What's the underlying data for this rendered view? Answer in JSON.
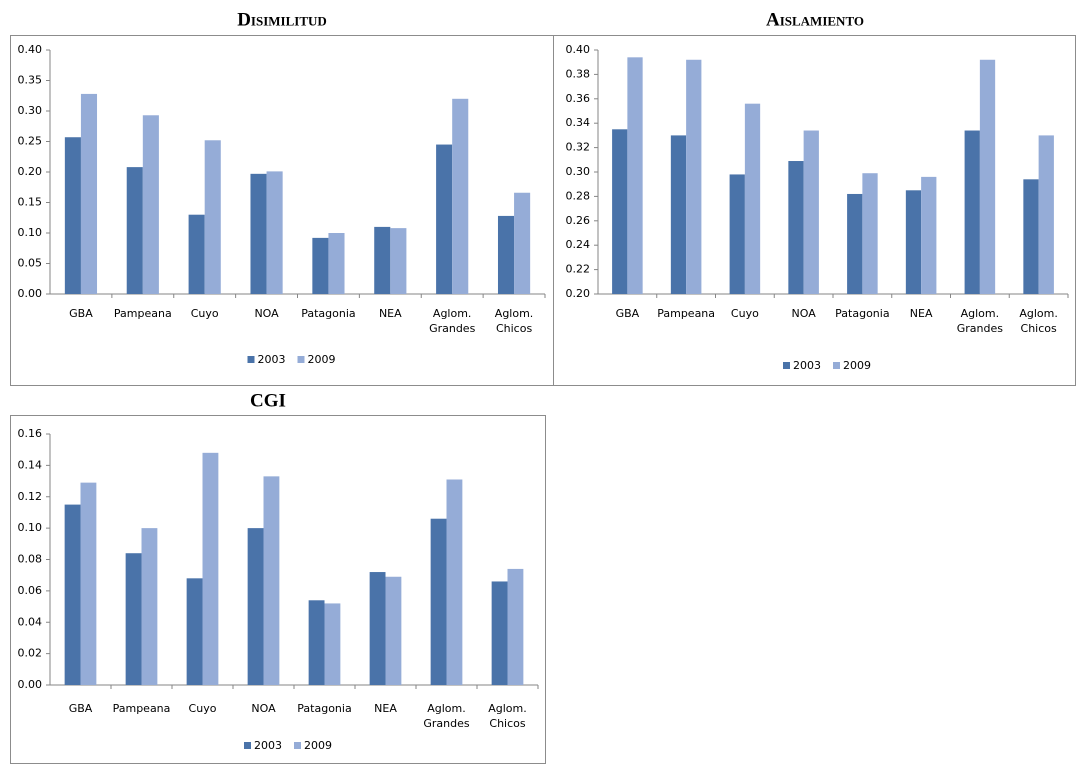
{
  "chart_data": [
    {
      "type": "bar",
      "title": "Disimilitud",
      "categories": [
        "GBA",
        "Pampeana",
        "Cuyo",
        "NOA",
        "Patagonia",
        "NEA",
        "Aglom. Grandes",
        "Aglom. Chicos"
      ],
      "series": [
        {
          "name": "2003",
          "color": "#4a73a9",
          "values": [
            0.257,
            0.208,
            0.13,
            0.197,
            0.092,
            0.11,
            0.245,
            0.128
          ]
        },
        {
          "name": "2009",
          "color": "#95acd7",
          "values": [
            0.328,
            0.293,
            0.252,
            0.201,
            0.1,
            0.108,
            0.32,
            0.166
          ]
        }
      ],
      "ylim": [
        0,
        0.4
      ],
      "yticks": [
        {
          "value": 0,
          "label": "0.00"
        },
        {
          "value": 0.05,
          "label": "0.05"
        },
        {
          "value": 0.1,
          "label": "0.10"
        },
        {
          "value": 0.15,
          "label": "0.15"
        },
        {
          "value": 0.2,
          "label": "0.20"
        },
        {
          "value": 0.25,
          "label": "0.25"
        },
        {
          "value": 0.3,
          "label": "0.30"
        },
        {
          "value": 0.35,
          "label": "0.35"
        },
        {
          "value": 0.4,
          "label": "0.40"
        }
      ],
      "legend": "bottom"
    },
    {
      "type": "bar",
      "title": "Aislamiento",
      "categories": [
        "GBA",
        "Pampeana",
        "Cuyo",
        "NOA",
        "Patagonia",
        "NEA",
        "Aglom. Grandes",
        "Aglom. Chicos"
      ],
      "series": [
        {
          "name": "2003",
          "color": "#4a73a9",
          "values": [
            0.335,
            0.33,
            0.298,
            0.309,
            0.282,
            0.285,
            0.334,
            0.294
          ]
        },
        {
          "name": "2009",
          "color": "#95acd7",
          "values": [
            0.394,
            0.392,
            0.356,
            0.334,
            0.299,
            0.296,
            0.392,
            0.33
          ]
        }
      ],
      "ylim": [
        0.2,
        0.4
      ],
      "yticks": [
        {
          "value": 0.2,
          "label": "0.20"
        },
        {
          "value": 0.22,
          "label": "0.22"
        },
        {
          "value": 0.24,
          "label": "0.24"
        },
        {
          "value": 0.26,
          "label": "0.26"
        },
        {
          "value": 0.28,
          "label": "0.28"
        },
        {
          "value": 0.3,
          "label": "0.30"
        },
        {
          "value": 0.32,
          "label": "0.32"
        },
        {
          "value": 0.34,
          "label": "0.34"
        },
        {
          "value": 0.36,
          "label": "0.36"
        },
        {
          "value": 0.38,
          "label": "0.38"
        },
        {
          "value": 0.4,
          "label": "0.40"
        }
      ],
      "legend": "bottom"
    },
    {
      "type": "bar",
      "title": "CGI",
      "categories": [
        "GBA",
        "Pampeana",
        "Cuyo",
        "NOA",
        "Patagonia",
        "NEA",
        "Aglom. Grandes",
        "Aglom. Chicos"
      ],
      "series": [
        {
          "name": "2003",
          "color": "#4a73a9",
          "values": [
            0.115,
            0.084,
            0.068,
            0.1,
            0.054,
            0.072,
            0.106,
            0.066
          ]
        },
        {
          "name": "2009",
          "color": "#95acd7",
          "values": [
            0.129,
            0.1,
            0.148,
            0.133,
            0.052,
            0.069,
            0.131,
            0.074
          ]
        }
      ],
      "ylim": [
        0,
        0.16
      ],
      "yticks": [
        {
          "value": 0,
          "label": "0.00"
        },
        {
          "value": 0.02,
          "label": "0.02"
        },
        {
          "value": 0.04,
          "label": "0.04"
        },
        {
          "value": 0.06,
          "label": "0.06"
        },
        {
          "value": 0.08,
          "label": "0.08"
        },
        {
          "value": 0.1,
          "label": "0.10"
        },
        {
          "value": 0.12,
          "label": "0.12"
        },
        {
          "value": 0.14,
          "label": "0.14"
        },
        {
          "value": 0.16,
          "label": "0.16"
        }
      ],
      "legend": "bottom"
    }
  ]
}
